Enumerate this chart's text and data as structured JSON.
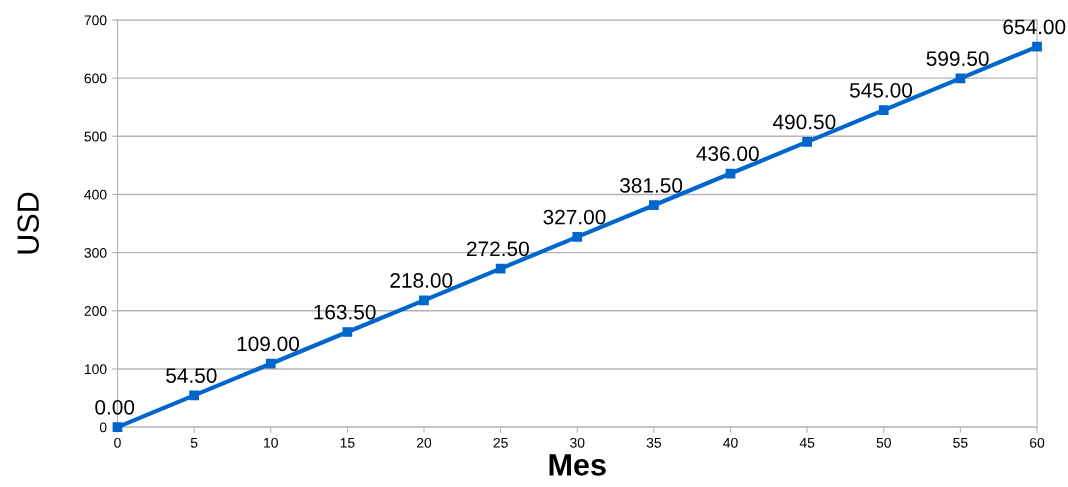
{
  "chart_data": {
    "type": "line",
    "xlabel": "Mes",
    "ylabel": "USD",
    "x": [
      0,
      5,
      10,
      15,
      20,
      25,
      30,
      35,
      40,
      45,
      50,
      55,
      60
    ],
    "series": [
      {
        "color": "#0066cc",
        "values": [
          0,
          54.5,
          109,
          163.5,
          218,
          272.5,
          327,
          381.5,
          436,
          490.5,
          545,
          599.5,
          654
        ],
        "value_labels": [
          "0.00",
          "54.50",
          "109.00",
          "163.50",
          "218.00",
          "272.50",
          "327.00",
          "381.50",
          "436.00",
          "490.50",
          "545.00",
          "599.50",
          "654.00"
        ]
      }
    ],
    "xlim": [
      0,
      60
    ],
    "xticks": [
      0,
      5,
      10,
      15,
      20,
      25,
      30,
      35,
      40,
      45,
      50,
      55,
      60
    ],
    "ylim": [
      0,
      700
    ],
    "yticks": [
      0,
      100,
      200,
      300,
      400,
      500,
      600,
      700
    ],
    "grid": "y",
    "marker": "square",
    "line_style": "solid"
  }
}
